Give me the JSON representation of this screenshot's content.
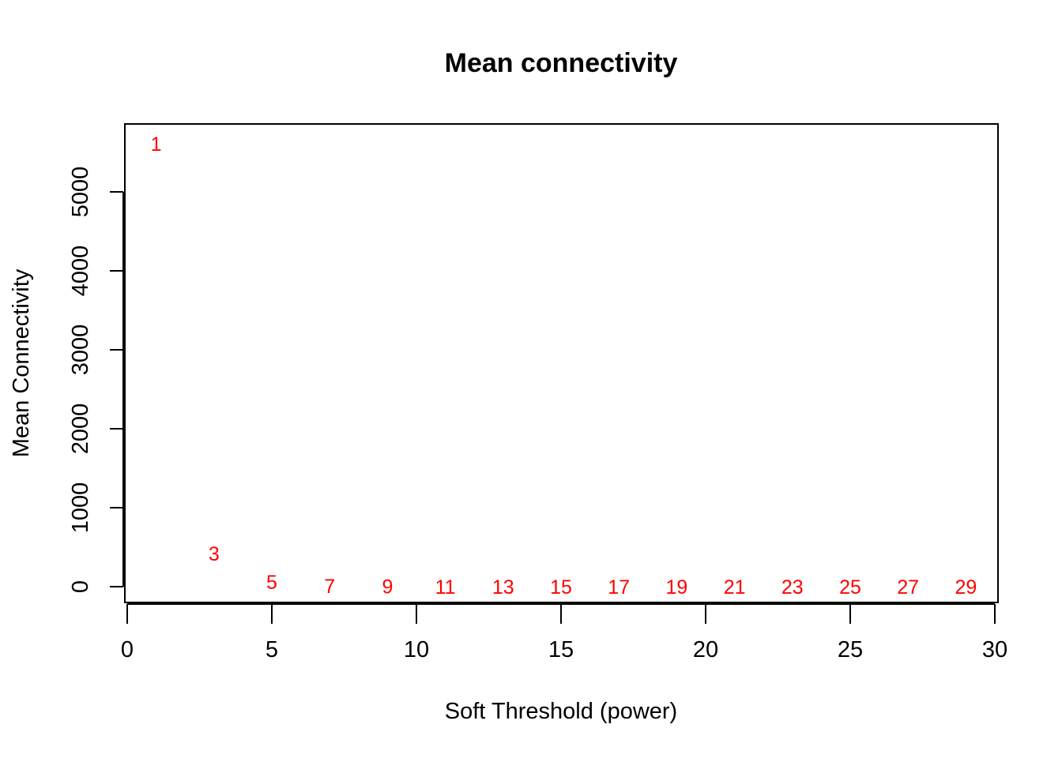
{
  "chart_data": {
    "type": "scatter",
    "title": "Mean connectivity",
    "xlabel": "Soft Threshold (power)",
    "ylabel": "Mean Connectivity",
    "xlim": [
      0,
      30
    ],
    "ylim": [
      -200,
      5860
    ],
    "x_ticks": [
      0,
      5,
      10,
      15,
      20,
      25,
      30
    ],
    "y_ticks": [
      0,
      1000,
      2000,
      3000,
      4000,
      5000
    ],
    "marker": "text",
    "point_color": "#ff0000",
    "grid": false,
    "legend": "none",
    "points": [
      {
        "x": 1,
        "y": 5610,
        "label": "1"
      },
      {
        "x": 3,
        "y": 420,
        "label": "3"
      },
      {
        "x": 5,
        "y": 60,
        "label": "5"
      },
      {
        "x": 7,
        "y": 12,
        "label": "7"
      },
      {
        "x": 9,
        "y": 4,
        "label": "9"
      },
      {
        "x": 11,
        "y": 2,
        "label": "11"
      },
      {
        "x": 13,
        "y": 1,
        "label": "13"
      },
      {
        "x": 15,
        "y": 0.5,
        "label": "15"
      },
      {
        "x": 17,
        "y": 0.3,
        "label": "17"
      },
      {
        "x": 19,
        "y": 0.2,
        "label": "19"
      },
      {
        "x": 21,
        "y": 0.1,
        "label": "21"
      },
      {
        "x": 23,
        "y": 0.1,
        "label": "23"
      },
      {
        "x": 25,
        "y": 0.1,
        "label": "25"
      },
      {
        "x": 27,
        "y": 0.1,
        "label": "27"
      },
      {
        "x": 29,
        "y": 0.1,
        "label": "29"
      }
    ]
  }
}
